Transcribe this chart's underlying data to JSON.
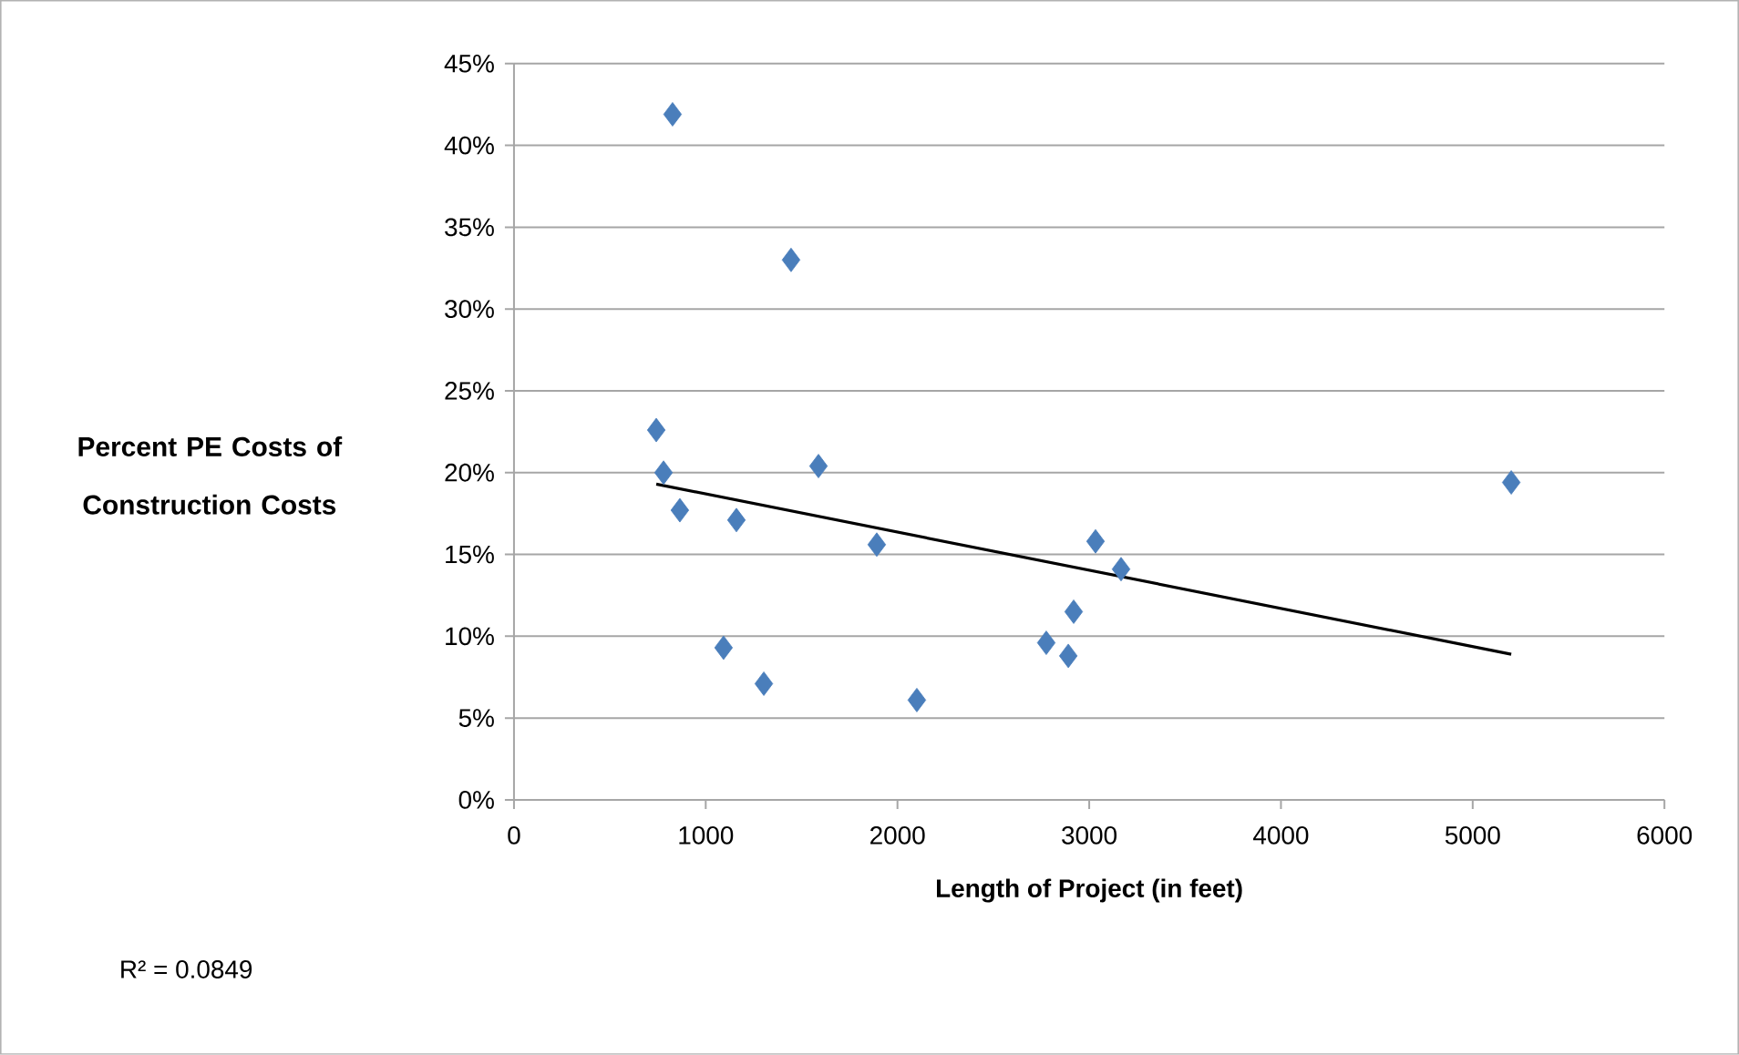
{
  "chart_data": {
    "type": "scatter",
    "xlabel": "Length of Project (in feet)",
    "ylabel": "Percent PE Costs of Construction Costs",
    "annotations": [
      "R² = 0.0849"
    ],
    "xlim": [
      0,
      6000
    ],
    "xticks": [
      0,
      1000,
      2000,
      3000,
      4000,
      5000,
      6000
    ],
    "ylim": [
      0,
      45
    ],
    "yticks": [
      {
        "value": 0,
        "label": "0%"
      },
      {
        "value": 5,
        "label": "5%"
      },
      {
        "value": 10,
        "label": "10%"
      },
      {
        "value": 15,
        "label": "15%"
      },
      {
        "value": 20,
        "label": "20%"
      },
      {
        "value": 25,
        "label": "25%"
      },
      {
        "value": 30,
        "label": "30%"
      },
      {
        "value": 35,
        "label": "35%"
      },
      {
        "value": 40,
        "label": "40%"
      },
      {
        "value": 45,
        "label": "45%"
      }
    ],
    "grid": "y",
    "marker": "diamond",
    "series": [
      {
        "color": "#4a7ebb",
        "x": [
          827,
          1445,
          742,
          780,
          1588,
          865,
          1160,
          1892,
          1093,
          1303,
          2101,
          2776,
          2891,
          2919,
          3033,
          3166,
          5201
        ],
        "values": [
          41.9,
          33.0,
          22.6,
          20.0,
          20.4,
          17.7,
          17.1,
          15.6,
          9.3,
          7.1,
          6.1,
          9.6,
          8.8,
          11.5,
          15.8,
          14.1,
          19.4
        ]
      },
      {
        "type": "line",
        "marker": "none",
        "color": "#000000",
        "x": [
          742,
          5201
        ],
        "values": [
          19.3,
          8.9
        ]
      }
    ]
  }
}
